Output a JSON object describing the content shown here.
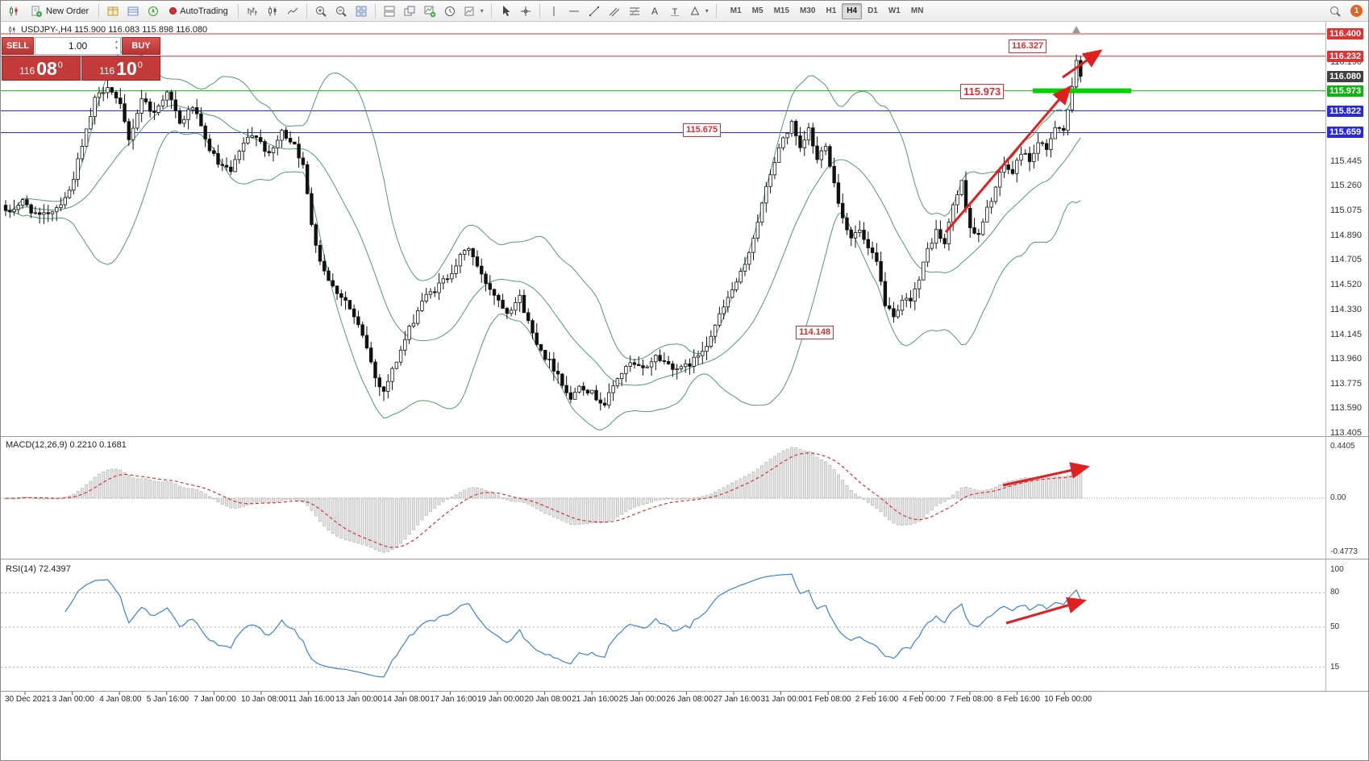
{
  "window": {
    "title_badge_count": "1"
  },
  "toolbar": {
    "new_order_label": "New Order",
    "autotrading_label": "AutoTrading",
    "timeframes": [
      "M1",
      "M5",
      "M15",
      "M30",
      "H1",
      "H4",
      "D1",
      "W1",
      "MN"
    ],
    "active_timeframe": "H4"
  },
  "chart": {
    "symbol_line": "USDJPY-,H4  115.900 116.083 115.898 116.080",
    "one_click": {
      "sell_label": "SELL",
      "buy_label": "BUY",
      "volume": "1.00",
      "sell_price_prefix": "116",
      "sell_price_big": "08",
      "sell_price_sup": "0",
      "buy_price_prefix": "116",
      "buy_price_big": "10",
      "buy_price_sup": "0"
    },
    "annotations": {
      "high_target": "116.327",
      "resistance": "115.973",
      "support_mid": "115.675",
      "low_marker": "114.148"
    },
    "level_lines": [
      {
        "price": 116.4,
        "color": "#e03232"
      },
      {
        "price": 116.232,
        "color": "#e03232"
      },
      {
        "price": 115.973,
        "color": "#17b317"
      },
      {
        "price": 115.822,
        "color": "#2929e0"
      },
      {
        "price": 115.659,
        "color": "#2929e0"
      }
    ]
  },
  "price_scale": {
    "boxes": [
      {
        "text": "116.400",
        "color": "#e03232"
      },
      {
        "text": "116.232",
        "color": "#e03232"
      },
      {
        "text": "116.080",
        "color": "#404040"
      },
      {
        "text": "115.973",
        "color": "#12b212"
      },
      {
        "text": "115.822",
        "color": "#2929e0"
      },
      {
        "text": "115.659",
        "color": "#2929e0"
      }
    ],
    "ticks": [
      "116.190",
      "115.445",
      "115.260",
      "115.075",
      "114.890",
      "114.705",
      "114.520",
      "114.330",
      "114.145",
      "113.960",
      "113.775",
      "113.590",
      "113.405"
    ]
  },
  "macd": {
    "label": "MACD(12,26,9) 0.2210 0.1681",
    "scale_max": "0.4405",
    "scale_zero": "0.00",
    "scale_min": "-0.4773"
  },
  "rsi": {
    "label": "RSI(14) 72.4397",
    "scale_labels": [
      "100",
      "80",
      "50",
      "15"
    ]
  },
  "time_axis": [
    "30 Dec 2021",
    "3 Jan 00:00",
    "4 Jan 08:00",
    "5 Jan 16:00",
    "7 Jan 00:00",
    "10 Jan 08:00",
    "11 Jan 16:00",
    "13 Jan 00:00",
    "14 Jan 08:00",
    "17 Jan 16:00",
    "19 Jan 00:00",
    "20 Jan 08:00",
    "21 Jan 16:00",
    "25 Jan 00:00",
    "26 Jan 08:00",
    "27 Jan 16:00",
    "31 Jan 00:00",
    "1 Feb 08:00",
    "2 Feb 16:00",
    "4 Feb 00:00",
    "7 Feb 08:00",
    "8 Feb 16:00",
    "10 Feb 00:00"
  ],
  "chart_data": {
    "type": "candlestick",
    "symbol": "USDJPY-",
    "timeframe": "H4",
    "ohlc_current": {
      "open": "115.900",
      "high": "116.083",
      "low": "115.898",
      "close": "116.080"
    },
    "visible_price_range": [
      113.405,
      116.4
    ],
    "indicators": [
      {
        "name": "Bollinger Bands",
        "color": "green"
      },
      {
        "name": "MACD",
        "params": "12,26,9",
        "values": [
          0.221,
          0.1681
        ]
      },
      {
        "name": "RSI",
        "params": "14",
        "value": 72.4397
      }
    ],
    "marked_levels": [
      116.4,
      116.327,
      116.232,
      116.08,
      115.973,
      115.822,
      115.675,
      115.659,
      114.148
    ],
    "price_keypoints": [
      [
        0,
        115.05
      ],
      [
        4,
        115.14
      ],
      [
        8,
        115.02
      ],
      [
        12,
        115.1
      ],
      [
        15,
        115.22
      ],
      [
        18,
        115.55
      ],
      [
        21,
        115.9
      ],
      [
        24,
        116.02
      ],
      [
        27,
        115.85
      ],
      [
        29,
        115.6
      ],
      [
        32,
        115.92
      ],
      [
        35,
        115.8
      ],
      [
        38,
        115.98
      ],
      [
        41,
        115.72
      ],
      [
        44,
        115.86
      ],
      [
        47,
        115.6
      ],
      [
        50,
        115.42
      ],
      [
        53,
        115.36
      ],
      [
        56,
        115.58
      ],
      [
        59,
        115.65
      ],
      [
        62,
        115.48
      ],
      [
        65,
        115.66
      ],
      [
        68,
        115.58
      ],
      [
        70,
        115.4
      ],
      [
        72,
        114.98
      ],
      [
        74,
        114.7
      ],
      [
        77,
        114.5
      ],
      [
        80,
        114.4
      ],
      [
        83,
        114.2
      ],
      [
        85,
        114.05
      ],
      [
        87,
        113.82
      ],
      [
        89,
        113.72
      ],
      [
        92,
        113.95
      ],
      [
        95,
        114.18
      ],
      [
        98,
        114.4
      ],
      [
        101,
        114.48
      ],
      [
        104,
        114.58
      ],
      [
        107,
        114.72
      ],
      [
        109,
        114.8
      ],
      [
        112,
        114.58
      ],
      [
        115,
        114.45
      ],
      [
        118,
        114.32
      ],
      [
        121,
        114.42
      ],
      [
        124,
        114.15
      ],
      [
        127,
        113.98
      ],
      [
        130,
        113.85
      ],
      [
        133,
        113.65
      ],
      [
        135,
        113.78
      ],
      [
        138,
        113.7
      ],
      [
        141,
        113.62
      ],
      [
        144,
        113.82
      ],
      [
        147,
        113.92
      ],
      [
        150,
        113.88
      ],
      [
        153,
        113.98
      ],
      [
        156,
        113.92
      ],
      [
        159,
        113.88
      ],
      [
        162,
        113.95
      ],
      [
        165,
        114.08
      ],
      [
        168,
        114.28
      ],
      [
        171,
        114.48
      ],
      [
        174,
        114.65
      ],
      [
        177,
        115.0
      ],
      [
        180,
        115.35
      ],
      [
        183,
        115.62
      ],
      [
        185,
        115.72
      ],
      [
        187,
        115.52
      ],
      [
        189,
        115.68
      ],
      [
        191,
        115.45
      ],
      [
        193,
        115.58
      ],
      [
        195,
        115.28
      ],
      [
        197,
        115.02
      ],
      [
        199,
        114.88
      ],
      [
        201,
        114.92
      ],
      [
        203,
        114.78
      ],
      [
        205,
        114.68
      ],
      [
        207,
        114.38
      ],
      [
        209,
        114.25
      ],
      [
        211,
        114.38
      ],
      [
        213,
        114.42
      ],
      [
        215,
        114.55
      ],
      [
        217,
        114.78
      ],
      [
        219,
        114.92
      ],
      [
        221,
        114.82
      ],
      [
        223,
        115.12
      ],
      [
        225,
        115.28
      ],
      [
        227,
        114.95
      ],
      [
        229,
        114.88
      ],
      [
        231,
        115.08
      ],
      [
        233,
        115.25
      ],
      [
        235,
        115.42
      ],
      [
        237,
        115.35
      ],
      [
        239,
        115.52
      ],
      [
        241,
        115.45
      ],
      [
        243,
        115.58
      ],
      [
        245,
        115.52
      ],
      [
        247,
        115.72
      ],
      [
        249,
        115.68
      ],
      [
        251,
        115.98
      ],
      [
        252,
        116.18
      ],
      [
        253,
        116.08
      ]
    ]
  }
}
